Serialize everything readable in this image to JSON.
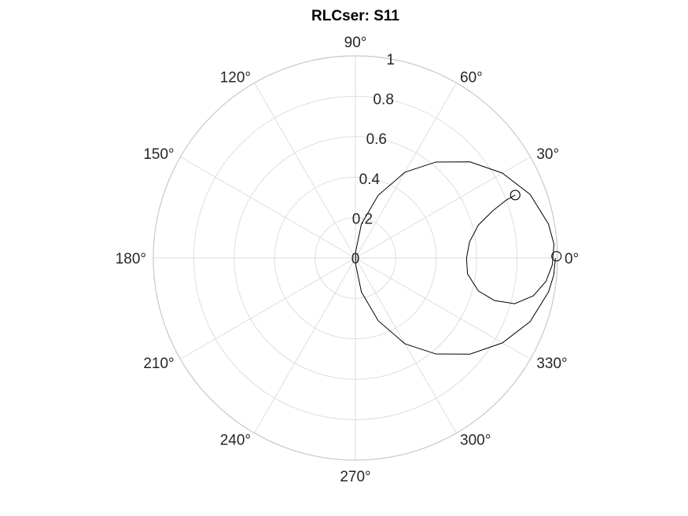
{
  "chart_data": {
    "type": "polar",
    "title": "RLCser: S11",
    "rlim": [
      0,
      1
    ],
    "r_ticks": [
      0,
      0.2,
      0.4,
      0.6,
      0.8,
      1
    ],
    "r_tick_labels": [
      "0",
      "0.2",
      "0.4",
      "0.6",
      "0.8",
      "1"
    ],
    "theta_ticks_deg": [
      0,
      30,
      60,
      90,
      120,
      150,
      180,
      210,
      240,
      270,
      300,
      330
    ],
    "theta_tick_labels": [
      "0°",
      "30°",
      "60°",
      "90°",
      "120°",
      "150°",
      "180°",
      "210°",
      "240°",
      "270°",
      "300°",
      "330°"
    ],
    "grid": true,
    "series": [
      {
        "style": "solid black line",
        "description_points": "outer circle from near origin through |S11|~1 at 0°, then inner loop ending near 21°",
        "points_polar": [
          {
            "theta": 0.0,
            "r": 0.99
          },
          {
            "theta": -5.0,
            "r": 0.985
          },
          {
            "theta": -10.0,
            "r": 0.97
          },
          {
            "theta": -20.0,
            "r": 0.92
          },
          {
            "theta": -30.0,
            "r": 0.84
          },
          {
            "theta": -40.0,
            "r": 0.74
          },
          {
            "theta": -50.0,
            "r": 0.62
          },
          {
            "theta": -60.0,
            "r": 0.49
          },
          {
            "theta": -70.0,
            "r": 0.33
          },
          {
            "theta": -80.0,
            "r": 0.17
          },
          {
            "theta": -88.0,
            "r": 0.03
          },
          {
            "theta": 88.0,
            "r": 0.03
          },
          {
            "theta": 80.0,
            "r": 0.17
          },
          {
            "theta": 70.0,
            "r": 0.33
          },
          {
            "theta": 60.0,
            "r": 0.49
          },
          {
            "theta": 50.0,
            "r": 0.62
          },
          {
            "theta": 40.0,
            "r": 0.74
          },
          {
            "theta": 30.0,
            "r": 0.84
          },
          {
            "theta": 20.0,
            "r": 0.92
          },
          {
            "theta": 10.0,
            "r": 0.97
          },
          {
            "theta": 4.0,
            "r": 0.985
          },
          {
            "theta": -2.0,
            "r": 0.975
          },
          {
            "theta": -7.0,
            "r": 0.95
          },
          {
            "theta": -12.0,
            "r": 0.9
          },
          {
            "theta": -16.0,
            "r": 0.82
          },
          {
            "theta": -17.0,
            "r": 0.72
          },
          {
            "theta": -15.0,
            "r": 0.63
          },
          {
            "theta": -8.0,
            "r": 0.56
          },
          {
            "theta": 0.0,
            "r": 0.55
          },
          {
            "theta": 8.0,
            "r": 0.57
          },
          {
            "theta": 15.0,
            "r": 0.63
          },
          {
            "theta": 19.0,
            "r": 0.72
          },
          {
            "theta": 21.0,
            "r": 0.8
          },
          {
            "theta": 21.5,
            "r": 0.85
          }
        ]
      }
    ],
    "markers": [
      {
        "theta": 0.5,
        "r": 0.995,
        "shape": "circle"
      },
      {
        "theta": 21.5,
        "r": 0.85,
        "shape": "circle"
      }
    ]
  }
}
